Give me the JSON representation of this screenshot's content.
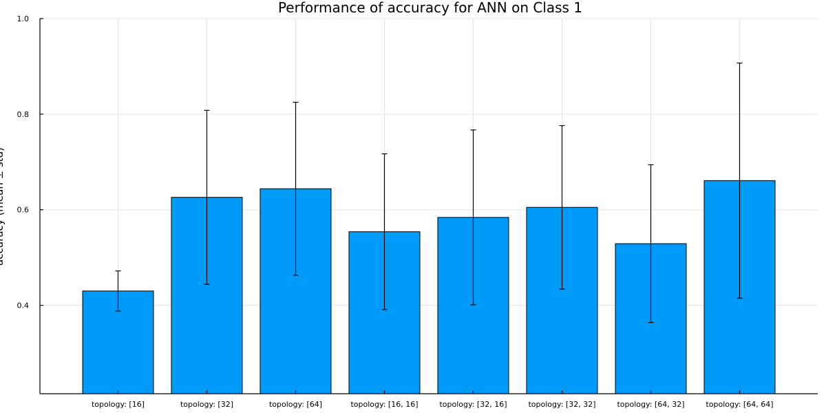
{
  "chart_data": {
    "type": "bar",
    "title": "Performance of accuracy for ANN on Class 1",
    "ylabel": "accuracy (mean ± std)",
    "xlabel": "",
    "categories": [
      "topology: [16]",
      "topology: [32]",
      "topology: [64]",
      "topology: [16, 16]",
      "topology: [32, 16]",
      "topology: [32, 32]",
      "topology: [64, 32]",
      "topology: [64, 64]"
    ],
    "values": [
      0.43,
      0.626,
      0.644,
      0.554,
      0.584,
      0.605,
      0.529,
      0.661
    ],
    "errors": [
      0.042,
      0.182,
      0.181,
      0.163,
      0.183,
      0.171,
      0.165,
      0.246
    ],
    "ylim": [
      0.215,
      1.0
    ],
    "yticks": [
      0.4,
      0.6,
      0.8,
      1.0
    ],
    "ytick_labels": [
      "0.4",
      "0.6",
      "0.8",
      "1.0"
    ],
    "grid": true,
    "bar_color": "#009af9"
  }
}
